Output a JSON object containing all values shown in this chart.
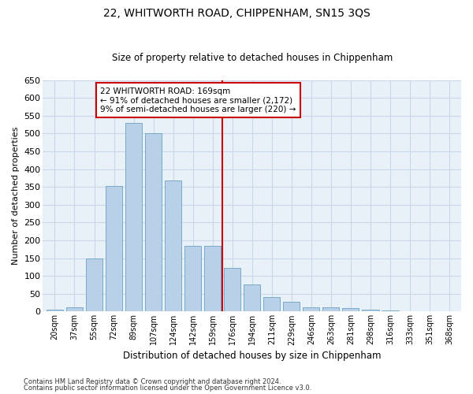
{
  "title": "22, WHITWORTH ROAD, CHIPPENHAM, SN15 3QS",
  "subtitle": "Size of property relative to detached houses in Chippenham",
  "xlabel": "Distribution of detached houses by size in Chippenham",
  "ylabel": "Number of detached properties",
  "categories": [
    "20sqm",
    "37sqm",
    "55sqm",
    "72sqm",
    "89sqm",
    "107sqm",
    "124sqm",
    "142sqm",
    "159sqm",
    "176sqm",
    "194sqm",
    "211sqm",
    "229sqm",
    "246sqm",
    "263sqm",
    "281sqm",
    "298sqm",
    "316sqm",
    "333sqm",
    "351sqm",
    "368sqm"
  ],
  "values": [
    5,
    13,
    150,
    353,
    530,
    500,
    368,
    185,
    185,
    122,
    75,
    40,
    27,
    12,
    13,
    10,
    5,
    2,
    1,
    0,
    0
  ],
  "bar_color": "#b8d0e8",
  "bar_edge_color": "#7aaac8",
  "vline_color": "#cc0000",
  "annotation_text": "22 WHITWORTH ROAD: 169sqm\n← 91% of detached houses are smaller (2,172)\n9% of semi-detached houses are larger (220) →",
  "annotation_box_color": "#ffffff",
  "annotation_box_edge": "#cc0000",
  "ylim": [
    0,
    650
  ],
  "yticks": [
    0,
    50,
    100,
    150,
    200,
    250,
    300,
    350,
    400,
    450,
    500,
    550,
    600,
    650
  ],
  "grid_color": "#c8d8e8",
  "background_color": "#e8f0f8",
  "footnote1": "Contains HM Land Registry data © Crown copyright and database right 2024.",
  "footnote2": "Contains public sector information licensed under the Open Government Licence v3.0."
}
